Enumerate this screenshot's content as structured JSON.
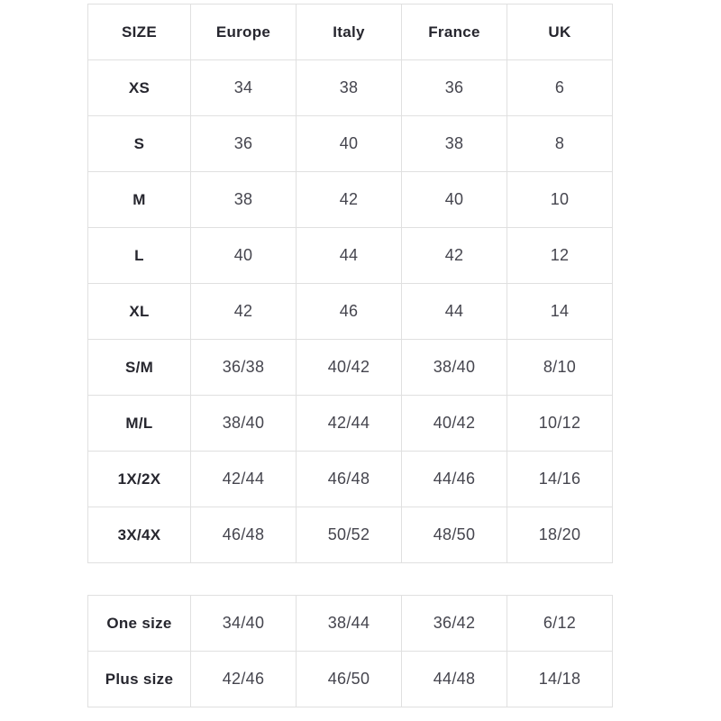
{
  "chart_data": [
    {
      "type": "table",
      "name": "international-size-conversion",
      "columns": [
        "SIZE",
        "Europe",
        "Italy",
        "France",
        "UK"
      ],
      "rows": [
        [
          "XS",
          "34",
          "38",
          "36",
          "6"
        ],
        [
          "S",
          "36",
          "40",
          "38",
          "8"
        ],
        [
          "M",
          "38",
          "42",
          "40",
          "10"
        ],
        [
          "L",
          "40",
          "44",
          "42",
          "12"
        ],
        [
          "XL",
          "42",
          "46",
          "44",
          "14"
        ],
        [
          "S/M",
          "36/38",
          "40/42",
          "38/40",
          "8/10"
        ],
        [
          "M/L",
          "38/40",
          "42/44",
          "40/42",
          "10/12"
        ],
        [
          "1X/2X",
          "42/44",
          "46/48",
          "44/46",
          "14/16"
        ],
        [
          "3X/4X",
          "46/48",
          "50/52",
          "48/50",
          "18/20"
        ]
      ]
    },
    {
      "type": "table",
      "name": "special-sizes",
      "columns": [],
      "rows": [
        [
          "One size",
          "34/40",
          "38/44",
          "36/42",
          "6/12"
        ],
        [
          "Plus size",
          "42/46",
          "46/50",
          "44/48",
          "14/18"
        ]
      ]
    }
  ],
  "colors": {
    "background": "#ffffff",
    "border": "#e0e0e0",
    "header_text": "#26262e",
    "cell_text": "#45454e"
  }
}
